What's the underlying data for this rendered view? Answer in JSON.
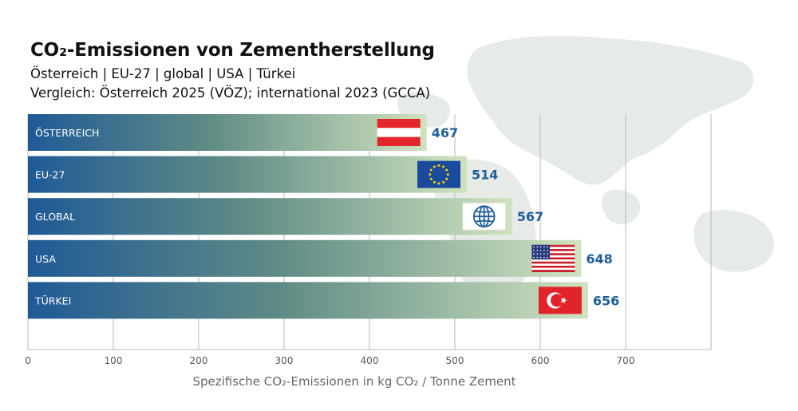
{
  "chart_data": {
    "type": "bar",
    "orientation": "horizontal",
    "title": "CO₂-Emissionen von Zementherstellung",
    "subtitle_lines": [
      "Österreich | EU-27 | global | USA | Türkei",
      "Vergleich: Österreich 2025 (VÖZ); international 2023 (GCCA)"
    ],
    "categories": [
      "ÖSTERREICH",
      "EU-27",
      "GLOBAL",
      "USA",
      "TÜRKEI"
    ],
    "values": [
      467,
      514,
      567,
      648,
      656
    ],
    "value_labels": [
      "467",
      "514",
      "567",
      "648",
      "656"
    ],
    "flag_icons": [
      "austria-flag-icon",
      "eu-flag-icon",
      "globe-icon",
      "usa-flag-icon",
      "turkey-flag-icon"
    ],
    "xlabel": "Spezifische CO₂-Emissionen in kg CO₂ / Tonne Zement",
    "ylabel": "",
    "xlim": [
      0,
      800
    ],
    "xticks": [
      0,
      100,
      200,
      300,
      400,
      500,
      600,
      700
    ],
    "xtick_labels": [
      "0",
      "100",
      "200",
      "300",
      "400",
      "500",
      "600",
      "700"
    ],
    "grid": true,
    "legend": "none",
    "background": "world-map-watermark",
    "colors": {
      "bar_start": "#1f5a96",
      "bar_mid": "#5f8b85",
      "bar_end": "#d0e2bf",
      "value_label": "#1f5f99",
      "grid": "#b8b8b8",
      "map": "#e6ebe7"
    }
  }
}
